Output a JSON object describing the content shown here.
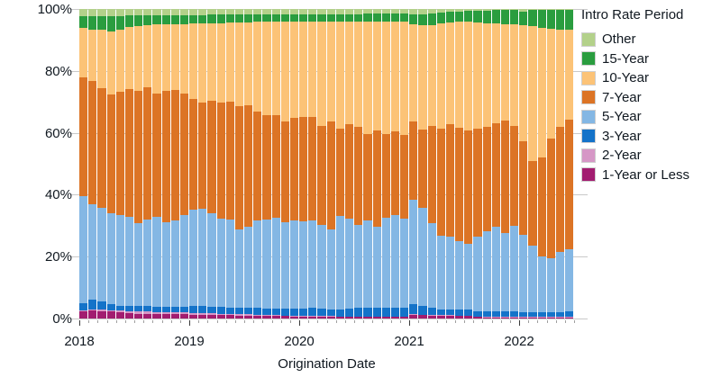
{
  "chart_data": {
    "type": "bar",
    "variant": "100-percent-stacked-column",
    "title": "",
    "xlabel": "Origination Date",
    "ylabel": "",
    "ylim": [
      0,
      100
    ],
    "y_ticks": [
      0,
      20,
      40,
      60,
      80,
      100
    ],
    "y_tick_labels": [
      "0%",
      "20%",
      "40%",
      "60%",
      "80%",
      "100%"
    ],
    "x_tick_labels": [
      "2018",
      "2019",
      "2020",
      "2021",
      "2022"
    ],
    "grid": "horizontal",
    "legend_title": "Intro Rate Period",
    "legend_position": "right",
    "legend_order_top_to_bottom": [
      "Other",
      "15-Year",
      "10-Year",
      "7-Year",
      "5-Year",
      "3-Year",
      "2-Year",
      "1-Year or Less"
    ],
    "colors": {
      "Other": "#b3d18a",
      "15-Year": "#2a9d3f",
      "10-Year": "#fcc377",
      "7-Year": "#dc7425",
      "5-Year": "#84b7e4",
      "3-Year": "#1473c9",
      "2-Year": "#d697c6",
      "1-Year or Less": "#a21d70"
    },
    "categories": [
      "2018-01",
      "2018-02",
      "2018-03",
      "2018-04",
      "2018-05",
      "2018-06",
      "2018-07",
      "2018-08",
      "2018-09",
      "2018-10",
      "2018-11",
      "2018-12",
      "2019-01",
      "2019-02",
      "2019-03",
      "2019-04",
      "2019-05",
      "2019-06",
      "2019-07",
      "2019-08",
      "2019-09",
      "2019-10",
      "2019-11",
      "2019-12",
      "2020-01",
      "2020-02",
      "2020-03",
      "2020-04",
      "2020-05",
      "2020-06",
      "2020-07",
      "2020-08",
      "2020-09",
      "2020-10",
      "2020-11",
      "2020-12",
      "2021-01",
      "2021-02",
      "2021-03",
      "2021-04",
      "2021-05",
      "2021-06",
      "2021-07",
      "2021-08",
      "2021-09",
      "2021-10",
      "2021-11",
      "2021-12",
      "2022-01",
      "2022-02",
      "2022-03",
      "2022-04",
      "2022-05",
      "2022-06"
    ],
    "series": [
      {
        "name": "1-Year or Less",
        "values": [
          2.3,
          2.5,
          2.4,
          2.2,
          1.9,
          1.7,
          1.6,
          1.5,
          1.5,
          1.4,
          1.4,
          1.4,
          1.3,
          1.3,
          1.2,
          1.2,
          1.1,
          1.0,
          1.0,
          0.9,
          0.9,
          0.8,
          0.8,
          0.7,
          0.7,
          0.7,
          0.6,
          0.6,
          0.5,
          0.5,
          0.5,
          0.5,
          0.5,
          0.5,
          0.5,
          0.5,
          1.3,
          1.1,
          0.9,
          0.9,
          0.9,
          0.8,
          0.8,
          0.5,
          0.4,
          0.4,
          0.4,
          0.4,
          0.4,
          0.3,
          0.3,
          0.3,
          0.3,
          0.3
        ]
      },
      {
        "name": "2-Year",
        "values": [
          0.4,
          0.4,
          0.4,
          0.4,
          0.6,
          0.7,
          0.7,
          0.7,
          0.6,
          0.6,
          0.5,
          0.5,
          0.5,
          0.5,
          0.5,
          0.4,
          0.4,
          0.4,
          0.4,
          0.4,
          0.3,
          0.3,
          0.2,
          0.3,
          0.2,
          0.2,
          0.2,
          0.2,
          0.2,
          0.2,
          0.2,
          0.2,
          0.1,
          0.1,
          0.1,
          0.1,
          0.2,
          0.2,
          0.2,
          0.2,
          0.2,
          0.2,
          0.2,
          0.2,
          0.2,
          0.2,
          0.2,
          0.2,
          0.2,
          0.2,
          0.2,
          0.2,
          0.2,
          0.2
        ]
      },
      {
        "name": "3-Year",
        "values": [
          2.3,
          3.1,
          2.6,
          2.0,
          1.7,
          1.7,
          1.9,
          1.8,
          1.8,
          1.8,
          1.8,
          1.9,
          2.2,
          2.2,
          2.1,
          2.1,
          2.1,
          2.1,
          2.0,
          2.1,
          2.1,
          2.1,
          2.2,
          2.1,
          2.4,
          2.5,
          2.4,
          2.2,
          2.3,
          2.5,
          2.8,
          2.9,
          2.9,
          3.0,
          2.9,
          2.8,
          3.2,
          2.9,
          2.3,
          1.9,
          1.8,
          1.8,
          1.8,
          1.6,
          1.6,
          1.6,
          1.6,
          1.6,
          1.5,
          1.5,
          1.5,
          1.5,
          1.5,
          1.9
        ]
      },
      {
        "name": "5-Year",
        "values": [
          34.4,
          31.0,
          30.4,
          29.5,
          29.1,
          28.8,
          26.5,
          27.9,
          29.0,
          27.2,
          27.9,
          29.5,
          31.1,
          31.5,
          30.3,
          28.7,
          28.3,
          25.3,
          26.4,
          28.3,
          28.6,
          29.5,
          28.0,
          28.6,
          28.2,
          28.3,
          27.0,
          25.8,
          30.2,
          29.0,
          26.7,
          28.1,
          26.3,
          29.1,
          30.0,
          28.8,
          33.7,
          31.6,
          27.4,
          23.8,
          23.5,
          22.1,
          21.3,
          24.2,
          26.1,
          27.5,
          25.3,
          27.8,
          24.9,
          21.5,
          18.0,
          17.5,
          19.5,
          20.1
        ]
      },
      {
        "name": "7-Year",
        "values": [
          38.5,
          39.7,
          38.5,
          38.3,
          40.0,
          41.1,
          42.9,
          42.9,
          39.9,
          42.6,
          42.3,
          39.4,
          35.8,
          34.4,
          36.3,
          37.3,
          38.1,
          39.8,
          39.2,
          35.2,
          33.7,
          33.1,
          32.5,
          33.0,
          33.5,
          33.5,
          32.1,
          34.9,
          28.2,
          30.6,
          31.7,
          28.0,
          31.1,
          26.9,
          27.1,
          27.2,
          25.3,
          25.2,
          31.4,
          34.6,
          36.3,
          36.8,
          36.7,
          34.9,
          33.6,
          33.3,
          36.5,
          32.2,
          30.3,
          27.5,
          32.0,
          38.7,
          40.5,
          41.8
        ]
      },
      {
        "name": "10-Year",
        "values": [
          16.1,
          16.6,
          19.1,
          20.4,
          20.1,
          20.1,
          21.0,
          20.0,
          22.2,
          21.5,
          21.3,
          22.4,
          24.4,
          25.4,
          25.1,
          25.8,
          25.6,
          27.0,
          26.7,
          28.9,
          30.2,
          30.0,
          32.2,
          31.2,
          30.9,
          30.7,
          33.7,
          32.3,
          34.6,
          33.1,
          34.0,
          36.3,
          35.0,
          36.3,
          35.3,
          36.4,
          31.3,
          33.8,
          32.5,
          33.9,
          33.0,
          34.1,
          35.0,
          34.3,
          33.6,
          32.4,
          31.2,
          32.8,
          37.4,
          43.4,
          41.9,
          35.3,
          31.3,
          28.9
        ]
      },
      {
        "name": "15-Year",
        "values": [
          3.6,
          4.4,
          4.3,
          5.0,
          4.4,
          3.8,
          3.4,
          3.2,
          3.0,
          2.9,
          2.9,
          3.0,
          2.8,
          2.8,
          2.7,
          2.7,
          2.6,
          2.6,
          2.6,
          2.5,
          2.5,
          2.5,
          2.4,
          2.4,
          2.4,
          2.4,
          2.4,
          2.4,
          2.4,
          2.5,
          2.5,
          2.5,
          2.6,
          2.6,
          2.6,
          2.7,
          3.2,
          3.6,
          3.8,
          3.5,
          3.3,
          3.4,
          3.6,
          3.8,
          4.0,
          4.2,
          4.4,
          4.6,
          4.5,
          5.2,
          5.8,
          6.2,
          6.4,
          6.5
        ]
      },
      {
        "name": "Other",
        "values": [
          2.4,
          2.3,
          2.3,
          2.2,
          2.2,
          2.1,
          2.0,
          2.0,
          2.0,
          2.0,
          1.9,
          1.9,
          1.9,
          1.9,
          1.8,
          1.8,
          1.8,
          1.8,
          1.7,
          1.7,
          1.7,
          1.7,
          1.7,
          1.7,
          1.7,
          1.7,
          1.6,
          1.6,
          1.6,
          1.6,
          1.6,
          1.5,
          1.5,
          1.5,
          1.5,
          1.5,
          1.8,
          1.6,
          1.5,
          1.2,
          1.0,
          0.8,
          0.6,
          0.5,
          0.5,
          0.4,
          0.4,
          0.4,
          0.8,
          0.4,
          0.3,
          0.3,
          0.3,
          0.3
        ]
      }
    ]
  }
}
